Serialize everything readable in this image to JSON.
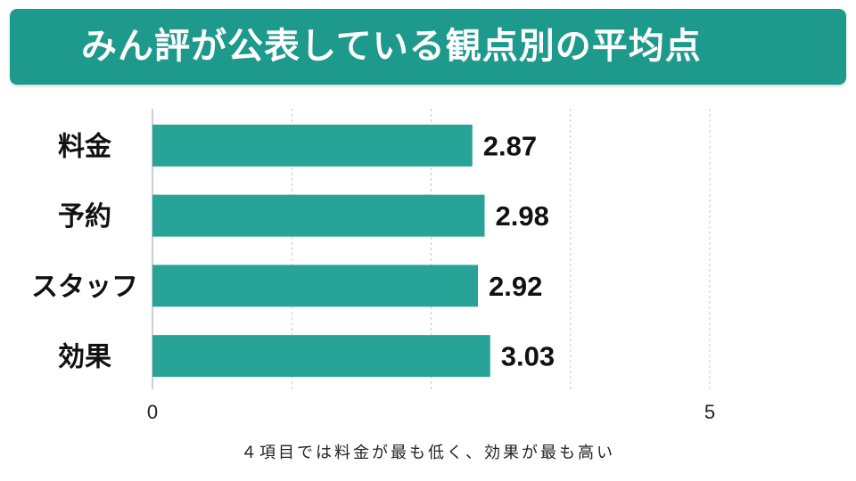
{
  "title": "みん評が公表している観点別の平均点",
  "caption": "４項目では料金が最も低く、効果が最も高い",
  "colors": {
    "accent": "#1e9a8c",
    "bar": "#27a497",
    "grid": "#c8c8c8"
  },
  "chart_data": {
    "type": "bar",
    "orientation": "horizontal",
    "categories": [
      "料金",
      "予約",
      "スタッフ",
      "効果"
    ],
    "values": [
      2.87,
      2.98,
      2.92,
      3.03
    ],
    "value_labels": [
      "2.87",
      "2.98",
      "2.92",
      "3.03"
    ],
    "xlim": [
      0,
      5
    ],
    "x_tick_labels": [
      "0",
      "5"
    ],
    "grid": "vertical dashed",
    "title": "",
    "xlabel": "",
    "ylabel": ""
  }
}
